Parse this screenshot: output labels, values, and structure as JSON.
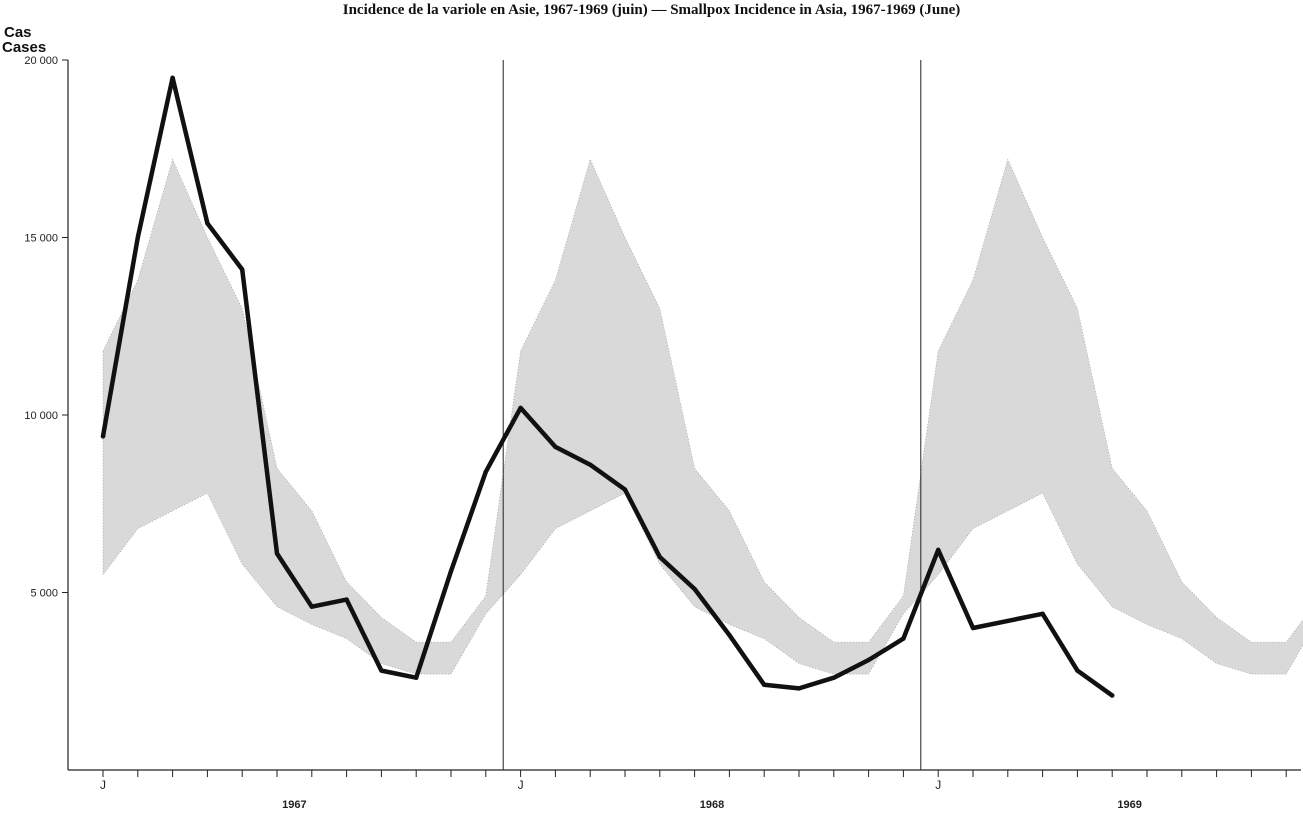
{
  "chart_data": {
    "type": "line",
    "title": "Incidence de la variole en Asie, 1967-1969 (juin) — Smallpox Incidence in Asia, 1967-1969 (June)",
    "ylabel_fr": "Cas",
    "ylabel_en": "Cases",
    "ylim": [
      0,
      20000
    ],
    "y_ticks": [
      {
        "value": 5000,
        "label": "5 000"
      },
      {
        "value": 10000,
        "label": "10 000"
      },
      {
        "value": 15000,
        "label": "15 000"
      },
      {
        "value": 20000,
        "label": "20 000"
      }
    ],
    "years": [
      "1967",
      "1968",
      "1969"
    ],
    "month_marker": "J",
    "x_unit": "month index from January 1967 (0 = Jan 1967)",
    "series": [
      {
        "values": [
          9400,
          15000,
          19500,
          15400,
          14100,
          6100,
          4600,
          4800,
          2800,
          2600,
          5600,
          8400,
          10200,
          9100,
          8600,
          7900,
          6000,
          5100,
          3800,
          2400,
          2300,
          2600,
          3100,
          3700,
          6200,
          4000,
          4200,
          4400,
          2800,
          2100
        ]
      },
      {
        "band": "shaded range",
        "upper": [
          11800,
          13800,
          17200,
          15000,
          13000,
          8500,
          7300,
          5300,
          4300,
          3600,
          3600,
          4900,
          11800,
          13800,
          17200,
          15000,
          13000,
          8500,
          7300,
          5300,
          4300,
          3600,
          3600,
          4900,
          11800,
          13800,
          17200,
          15000,
          13000,
          8500,
          7300,
          5300,
          4300,
          3600,
          3600,
          4900
        ],
        "lower": [
          5500,
          6800,
          7300,
          7800,
          5800,
          4600,
          4100,
          3700,
          3000,
          2700,
          2700,
          4400,
          5500,
          6800,
          7300,
          7800,
          5800,
          4600,
          4100,
          3700,
          3000,
          2700,
          2700,
          4400,
          5500,
          6800,
          7300,
          7800,
          5800,
          4600,
          4100,
          3700,
          3000,
          2700,
          2700,
          4400
        ]
      }
    ],
    "colors": {
      "line": "#111111",
      "band": "#b9b9b9",
      "axis": "#222222"
    }
  }
}
